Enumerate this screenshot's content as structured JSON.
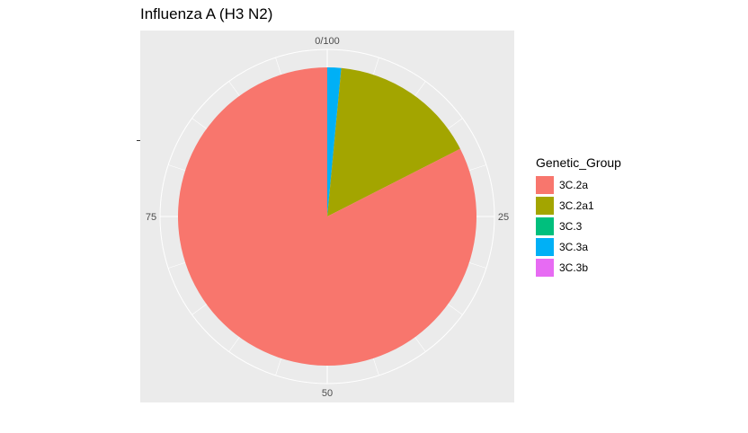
{
  "title": "Influenza A (H3 N2)",
  "chart_data": {
    "type": "pie",
    "title": "Influenza A (H3 N2)",
    "legend_title": "Genetic_Group",
    "legend_position": "right",
    "categories": [
      "3C.2a",
      "3C.2a1",
      "3C.3",
      "3C.3a",
      "3C.3b"
    ],
    "values": [
      82.5,
      16.0,
      0.0,
      1.5,
      0.0
    ],
    "colors": [
      "#F8766D",
      "#A3A500",
      "#00BF7D",
      "#00B0F6",
      "#E76BF3"
    ],
    "theta_ticks": [
      "0/100",
      "25",
      "50",
      "75"
    ],
    "grid": true
  }
}
